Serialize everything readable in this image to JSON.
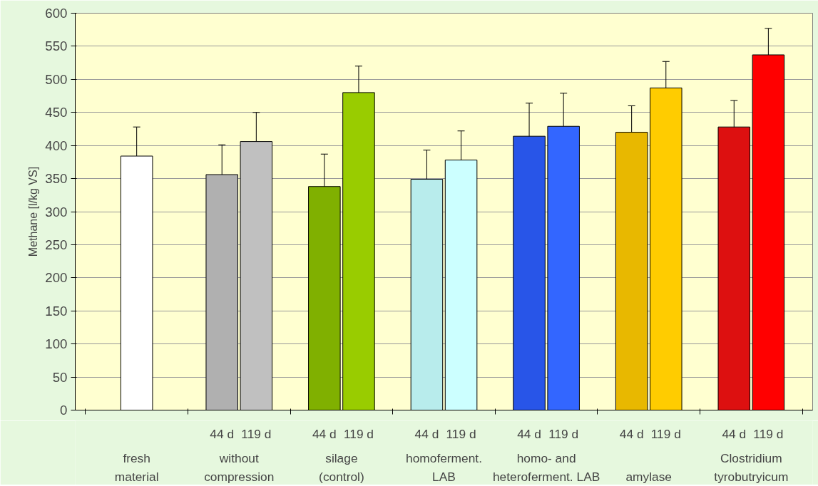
{
  "chart_data": {
    "type": "bar",
    "ylabel": "Methane [l/kg VS]",
    "categories": [
      "fresh\nmaterial",
      "without\ncompression",
      "silage\n(control)",
      "homoferment.\nLAB",
      "homo- and\nheteroferment. LAB",
      "amylase",
      "Clostridium\ntyrobutryicum"
    ],
    "series": [
      {
        "colors": [
          "#ffffff",
          null,
          null,
          null,
          null,
          null,
          null
        ],
        "values": [
          384,
          null,
          null,
          null,
          null,
          null,
          null
        ],
        "errors": [
          44,
          null,
          null,
          null,
          null,
          null,
          null
        ]
      },
      {
        "name": "44 d",
        "colors": [
          null,
          "#b0b0b0",
          "#80b000",
          "#b8ecec",
          "#2855e8",
          "#e8b800",
          "#dd1010"
        ],
        "values": [
          null,
          356,
          338,
          349,
          414,
          420,
          428
        ],
        "errors": [
          null,
          45,
          49,
          44,
          50,
          40,
          40
        ]
      },
      {
        "name": "119 d",
        "colors": [
          null,
          "#c0c0c0",
          "#99cc00",
          "#ccffff",
          "#3366ff",
          "#ffcc00",
          "#ff0000"
        ],
        "values": [
          null,
          406,
          480,
          378,
          429,
          487,
          537
        ],
        "errors": [
          null,
          44,
          40,
          44,
          50,
          40,
          40
        ]
      }
    ],
    "ylim": [
      0,
      600
    ],
    "yticks": [
      0,
      50,
      100,
      150,
      200,
      250,
      300,
      350,
      400,
      450,
      500,
      550,
      600
    ],
    "grid": "y"
  }
}
